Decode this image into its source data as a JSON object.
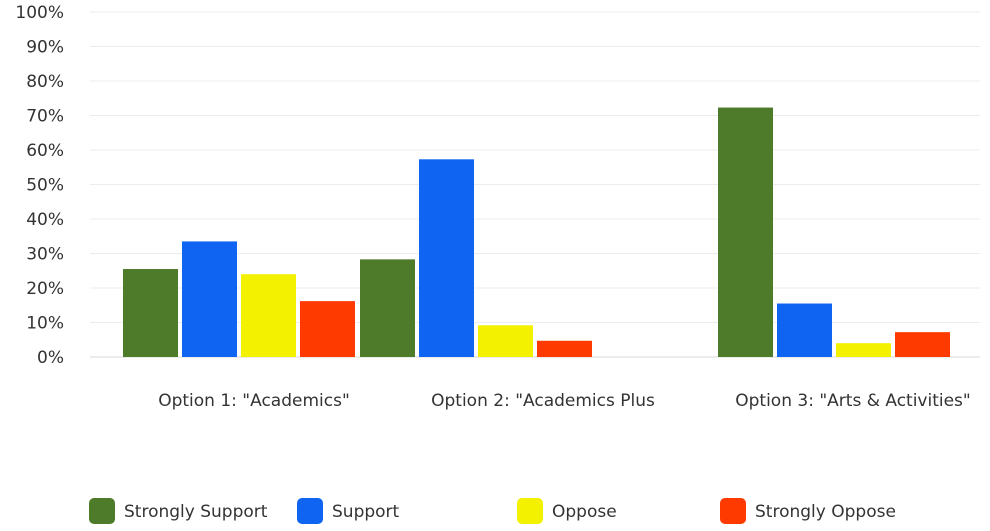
{
  "chart_data": {
    "type": "bar",
    "title": "",
    "xlabel": "",
    "ylabel": "",
    "categories": [
      "Option 1: \"Academics\"",
      "Option 2: \"Academics Plus",
      "Option 3: \"Arts & Activities\""
    ],
    "series": [
      {
        "name": "Strongly Support",
        "color": "#4e7b2a",
        "values": [
          25.5,
          28.3,
          72.3
        ]
      },
      {
        "name": "Support",
        "color": "#0f65f2",
        "values": [
          33.5,
          57.3,
          15.5
        ]
      },
      {
        "name": "Oppose",
        "color": "#f3f100",
        "values": [
          24,
          9.2,
          4
        ]
      },
      {
        "name": "Strongly Oppose",
        "color": "#ff3a00",
        "values": [
          16.2,
          4.7,
          7.2
        ]
      }
    ],
    "ylim": [
      0,
      100
    ],
    "yticks": [
      "0%",
      "10%",
      "20%",
      "30%",
      "40%",
      "50%",
      "60%",
      "70%",
      "80%",
      "90%",
      "100%"
    ],
    "grid": true,
    "legend_position": "bottom"
  }
}
